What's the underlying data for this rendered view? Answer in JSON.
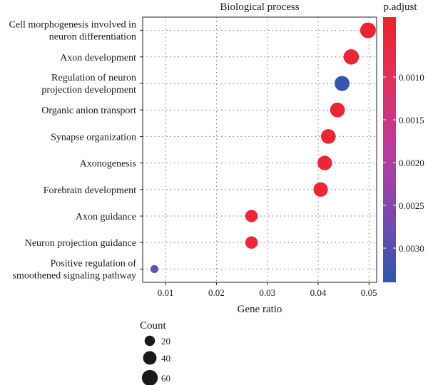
{
  "chart_data": {
    "type": "scatter",
    "title": "Biological process",
    "xlabel": "Gene ratio",
    "xlim": [
      0.0055,
      0.0515
    ],
    "xticks": [
      0.01,
      0.02,
      0.03,
      0.04,
      0.05
    ],
    "xtick_labels": [
      "0.01",
      "0.02",
      "0.03",
      "0.04",
      "0.05"
    ],
    "grid": true,
    "categories": [
      [
        "Cell morphogenesis involved in",
        "neuron differentiation"
      ],
      [
        "Axon development"
      ],
      [
        "Regulation of neuron",
        "projection development"
      ],
      [
        "Organic anion transport"
      ],
      [
        "Synapse organization"
      ],
      [
        "Axonogenesis"
      ],
      [
        "Forebrain development"
      ],
      [
        "Axon guidance"
      ],
      [
        "Neuron projection guidance"
      ],
      [
        "Positive regulation of",
        "smoothened signaling pathway"
      ]
    ],
    "points": [
      {
        "gene_ratio": 0.0498,
        "count": 58,
        "p_adjust": 0.00035
      },
      {
        "gene_ratio": 0.0465,
        "count": 55,
        "p_adjust": 0.00045
      },
      {
        "gene_ratio": 0.0447,
        "count": 52,
        "p_adjust": 0.0033
      },
      {
        "gene_ratio": 0.0438,
        "count": 50,
        "p_adjust": 0.0004
      },
      {
        "gene_ratio": 0.042,
        "count": 49,
        "p_adjust": 0.0004
      },
      {
        "gene_ratio": 0.0413,
        "count": 48,
        "p_adjust": 0.0004
      },
      {
        "gene_ratio": 0.0405,
        "count": 47,
        "p_adjust": 0.0004
      },
      {
        "gene_ratio": 0.0269,
        "count": 32,
        "p_adjust": 0.0004
      },
      {
        "gene_ratio": 0.0269,
        "count": 32,
        "p_adjust": 0.0004
      },
      {
        "gene_ratio": 0.0078,
        "count": 9,
        "p_adjust": 0.0028
      }
    ],
    "color_legend": {
      "title": "p.adjust",
      "range": [
        0.0003,
        0.0034
      ],
      "ticks": [
        0.001,
        0.0015,
        0.002,
        0.0025,
        0.003
      ],
      "tick_labels": [
        "0.0010",
        "0.0015",
        "0.0020",
        "0.0025",
        "0.0030"
      ],
      "colors": [
        "#f0232e",
        "#e0305c",
        "#bb3aa0",
        "#7c48b3",
        "#2b57b0"
      ]
    },
    "size_legend": {
      "title": "Count",
      "values": [
        20,
        40,
        60
      ],
      "labels": [
        "20",
        "40",
        "60"
      ]
    }
  }
}
